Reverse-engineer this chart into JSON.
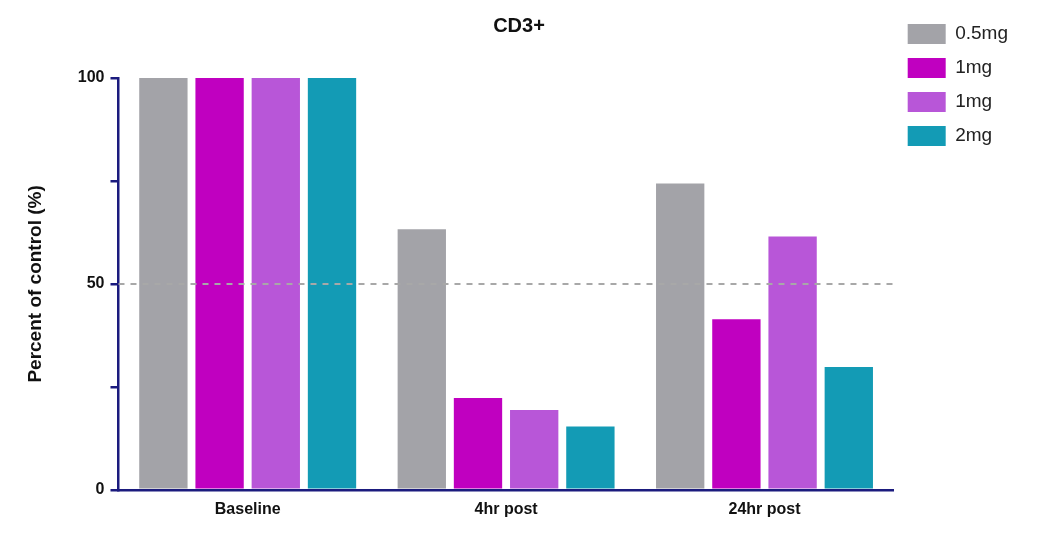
{
  "chart_data": {
    "type": "bar",
    "title": "CD3+",
    "ylabel": "Percent of control (%)",
    "categories": [
      "Baseline",
      "4hr post",
      "24hr post"
    ],
    "series": [
      {
        "name": "0.5mg",
        "color": "#a3a3a8",
        "values": [
          100,
          63.3,
          74.4
        ]
      },
      {
        "name": "1mg",
        "color": "#c000c0",
        "values": [
          100,
          22.3,
          41.4
        ]
      },
      {
        "name": "1mg",
        "color": "#b856d8",
        "values": [
          100,
          19.4,
          61.5
        ]
      },
      {
        "name": "2mg",
        "color": "#139bb5",
        "values": [
          100,
          15.4,
          29.8
        ]
      }
    ],
    "ylim": [
      0,
      100
    ],
    "yticks": [
      0,
      {
        "value": 25,
        "label": null
      },
      50,
      {
        "value": 75,
        "label": null
      },
      100
    ],
    "ref_lines": [
      {
        "axis": "y",
        "value": 50,
        "color": "#a8a8a8",
        "line_style": "dashed"
      }
    ],
    "grid": false,
    "legend": "top right"
  }
}
